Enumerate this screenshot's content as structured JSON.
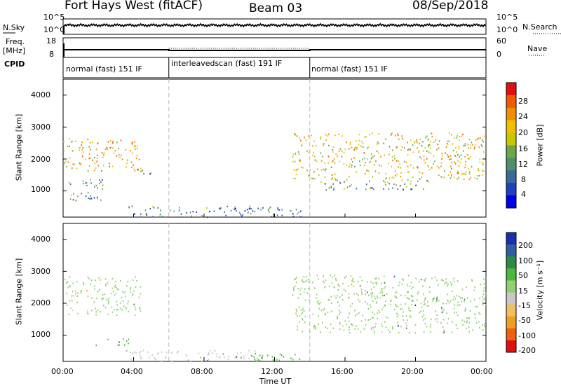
{
  "header": {
    "title": "Fort Hays West (fitACF)",
    "beam": "Beam 03",
    "date": "08/Sep/2018"
  },
  "left_labels": {
    "nsky": "N.Sky",
    "freq_line1": "Freq.",
    "freq_line2": "[MHz]",
    "cpid": "CPID"
  },
  "right_labels": {
    "nsearch": "N.Search",
    "nave": "Nave"
  },
  "noise_panel": {
    "left_ticks": [
      "10^5",
      "10^0"
    ],
    "right_ticks": [
      "10^5",
      "10^0"
    ]
  },
  "freq_panel": {
    "left_ticks": [
      "18",
      "8"
    ],
    "right_ticks": [
      "60",
      "0"
    ]
  },
  "cpid_segments": [
    {
      "label": "normal (fast) 151 IF",
      "start_hour": 0,
      "end_hour": 6
    },
    {
      "label": "interleavedscan (fast) 191 IF",
      "start_hour": 6,
      "end_hour": 14
    },
    {
      "label": "normal (fast) 151 IF",
      "start_hour": 14,
      "end_hour": 24
    }
  ],
  "x_axis": {
    "label": "Time UT",
    "ticks": [
      "00:00",
      "04:00",
      "08:00",
      "12:00",
      "16:00",
      "20:00",
      "00:00"
    ]
  },
  "power_panel": {
    "ylabel": "Slant Range [km]",
    "yticks": [
      "4000",
      "3000",
      "2000",
      "1000"
    ],
    "colorbar_label": "Power [dB]",
    "colorbar_ticks": [
      "28",
      "24",
      "20",
      "16",
      "12",
      "8",
      "4"
    ],
    "colors": [
      "#0000e6",
      "#2040c0",
      "#3a6a9a",
      "#4f8f6a",
      "#6aa84a",
      "#c8c800",
      "#f0c000",
      "#f09000",
      "#f05a00",
      "#e01010"
    ]
  },
  "velocity_panel": {
    "ylabel": "Slant Range [km]",
    "yticks": [
      "4000",
      "3000",
      "2000",
      "1000"
    ],
    "colorbar_label": "Velocity [m s⁻¹]",
    "colorbar_ticks": [
      "200",
      "100",
      "50",
      "15",
      "-15",
      "-50",
      "-100",
      "-200"
    ],
    "colors": [
      "#1a2fb0",
      "#2f5fa0",
      "#2f8a4a",
      "#4ab83a",
      "#90d070",
      "#c8c8c8",
      "#f0c060",
      "#f0a020",
      "#f06010",
      "#e01010"
    ]
  },
  "chart_data": {
    "type": "heatmap",
    "x_range_hours": [
      0,
      24
    ],
    "y_range_km": [
      180,
      4500
    ],
    "mode_boundaries_hours": [
      6,
      14
    ],
    "power_regions": [
      {
        "t_start": 0.0,
        "t_end": 4.4,
        "range_start_km": 1650,
        "range_end_km": 2650,
        "power_db": 20
      },
      {
        "t_start": 0.3,
        "t_end": 2.3,
        "range_start_km": 700,
        "range_end_km": 1400,
        "power_db": 10
      },
      {
        "t_start": 4.2,
        "t_end": 5.3,
        "range_start_km": 1450,
        "range_end_km": 1700,
        "power_db": 8
      },
      {
        "t_start": 3.5,
        "t_end": 13.5,
        "range_start_km": 200,
        "range_end_km": 550,
        "power_db": 8
      },
      {
        "t_start": 13.0,
        "t_end": 24.0,
        "range_start_km": 1350,
        "range_end_km": 2850,
        "power_db": 18
      },
      {
        "t_start": 14.3,
        "t_end": 21.0,
        "range_start_km": 1050,
        "range_end_km": 1350,
        "power_db": 10
      }
    ],
    "velocity_regions": [
      {
        "t_start": 0.0,
        "t_end": 4.4,
        "range_start_km": 1650,
        "range_end_km": 2850,
        "velocity_ms": 0
      },
      {
        "t_start": 1.8,
        "t_end": 3.8,
        "range_start_km": 700,
        "range_end_km": 900,
        "velocity_ms": 40
      },
      {
        "t_start": 3.5,
        "t_end": 11.0,
        "range_start_km": 200,
        "range_end_km": 550,
        "velocity_ms": -30
      },
      {
        "t_start": 9.5,
        "t_end": 13.5,
        "range_start_km": 200,
        "range_end_km": 450,
        "velocity_ms": 40
      },
      {
        "t_start": 13.0,
        "t_end": 24.0,
        "range_start_km": 1100,
        "range_end_km": 2900,
        "velocity_ms": 0
      }
    ],
    "noise_sky_level": "10^2",
    "nave_level": 20
  }
}
